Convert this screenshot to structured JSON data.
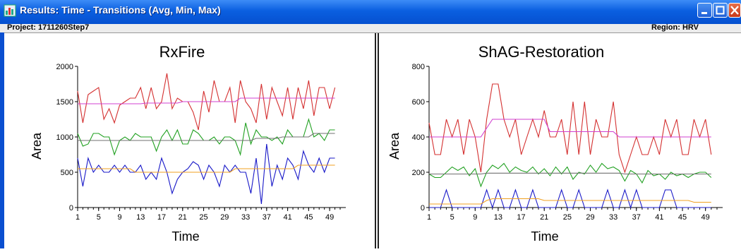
{
  "window": {
    "title": "Results: Time - Transitions (Avg, Min, Max)",
    "project_label": "Project: 1711260Step7",
    "region_label": "Region: HRV"
  },
  "colors": {
    "series_1": "#d43030",
    "series_2": "#d040d0",
    "series_3": "#20a020",
    "series_4": "#707070",
    "series_5": "#1818c8",
    "series_6": "#f0a020"
  },
  "chart_data": [
    {
      "type": "line",
      "title": "RxFire",
      "xlabel": "Time",
      "ylabel": "Area",
      "xlim": [
        1,
        51
      ],
      "ylim": [
        0,
        2000
      ],
      "xticks": [
        1,
        5,
        9,
        13,
        17,
        21,
        25,
        29,
        33,
        37,
        41,
        45,
        49
      ],
      "yticks": [
        0,
        500,
        1000,
        1500,
        2000
      ],
      "x": [
        1,
        2,
        3,
        4,
        5,
        6,
        7,
        8,
        9,
        10,
        11,
        12,
        13,
        14,
        15,
        16,
        17,
        18,
        19,
        20,
        21,
        22,
        23,
        24,
        25,
        26,
        27,
        28,
        29,
        30,
        31,
        32,
        33,
        34,
        35,
        36,
        37,
        38,
        39,
        40,
        41,
        42,
        43,
        44,
        45,
        46,
        47,
        48,
        49,
        50
      ],
      "series": [
        {
          "color": "#d43030",
          "values": [
            1650,
            1200,
            1600,
            1650,
            1700,
            1250,
            1400,
            1200,
            1450,
            1500,
            1550,
            1550,
            1700,
            1400,
            1700,
            1400,
            1500,
            1900,
            1400,
            1550,
            1500,
            1500,
            1350,
            1100,
            1650,
            1350,
            1800,
            1500,
            1500,
            1700,
            1200,
            1800,
            1500,
            1400,
            1200,
            1750,
            1250,
            1700,
            1500,
            1300,
            1700,
            1250,
            1700,
            1400,
            1800,
            1300,
            1700,
            1700,
            1400,
            1700
          ]
        },
        {
          "color": "#d040d0",
          "values": [
            1470,
            1470,
            1470,
            1470,
            1470,
            1470,
            1470,
            1470,
            1470,
            1470,
            1470,
            1470,
            1470,
            1480,
            1480,
            1480,
            1480,
            1480,
            1480,
            1480,
            1500,
            1500,
            1500,
            1500,
            1500,
            1500,
            1500,
            1500,
            1500,
            1500,
            1500,
            1550,
            1550,
            1550,
            1550,
            1550,
            1550,
            1550,
            1550,
            1550,
            1550,
            1550,
            1550,
            1550,
            1550,
            1550,
            1550,
            1550,
            1550,
            1550
          ]
        },
        {
          "color": "#20a020",
          "values": [
            1050,
            870,
            900,
            1050,
            1050,
            1000,
            1000,
            750,
            950,
            1000,
            950,
            1050,
            1000,
            1000,
            1000,
            800,
            1000,
            1100,
            950,
            1100,
            900,
            900,
            1100,
            1050,
            950,
            950,
            1000,
            900,
            1000,
            1000,
            950,
            750,
            1200,
            900,
            1100,
            1000,
            1000,
            950,
            1000,
            900,
            1100,
            1000,
            1000,
            1000,
            1250,
            1000,
            1050,
            950,
            1100,
            1100
          ]
        },
        {
          "color": "#707070",
          "values": [
            950,
            950,
            950,
            950,
            950,
            950,
            950,
            950,
            950,
            950,
            950,
            950,
            950,
            950,
            950,
            950,
            950,
            950,
            950,
            950,
            950,
            950,
            950,
            950,
            950,
            950,
            950,
            950,
            950,
            950,
            950,
            950,
            950,
            950,
            980,
            980,
            980,
            980,
            980,
            1000,
            1000,
            1000,
            1000,
            1000,
            1000,
            1050,
            1050,
            1050,
            1050,
            1050
          ]
        },
        {
          "color": "#1818c8",
          "values": [
            700,
            300,
            700,
            500,
            600,
            500,
            500,
            600,
            500,
            600,
            500,
            500,
            600,
            400,
            500,
            400,
            700,
            500,
            200,
            400,
            500,
            550,
            650,
            600,
            400,
            600,
            500,
            300,
            600,
            500,
            600,
            500,
            500,
            200,
            700,
            50,
            900,
            300,
            600,
            400,
            700,
            600,
            400,
            800,
            600,
            500,
            700,
            500,
            700,
            700
          ]
        },
        {
          "color": "#f0a020",
          "values": [
            550,
            550,
            550,
            550,
            550,
            550,
            550,
            550,
            550,
            550,
            550,
            500,
            500,
            500,
            500,
            500,
            500,
            500,
            500,
            500,
            500,
            500,
            500,
            500,
            500,
            500,
            500,
            500,
            500,
            500,
            550,
            550,
            550,
            550,
            550,
            550,
            550,
            550,
            550,
            550,
            550,
            550,
            600,
            600,
            600,
            600,
            600,
            600,
            600,
            600
          ]
        }
      ]
    },
    {
      "type": "line",
      "title": "ShAG-Restoration",
      "xlabel": "Time",
      "ylabel": "Area",
      "xlim": [
        1,
        51
      ],
      "ylim": [
        0,
        800
      ],
      "xticks": [
        1,
        5,
        9,
        13,
        17,
        21,
        25,
        29,
        33,
        37,
        41,
        45,
        49
      ],
      "yticks": [
        0,
        200,
        400,
        600,
        800
      ],
      "x": [
        1,
        2,
        3,
        4,
        5,
        6,
        7,
        8,
        9,
        10,
        11,
        12,
        13,
        14,
        15,
        16,
        17,
        18,
        19,
        20,
        21,
        22,
        23,
        24,
        25,
        26,
        27,
        28,
        29,
        30,
        31,
        32,
        33,
        34,
        35,
        36,
        37,
        38,
        39,
        40,
        41,
        42,
        43,
        44,
        45,
        46,
        47,
        48,
        49,
        50
      ],
      "series": [
        {
          "color": "#d43030",
          "values": [
            480,
            300,
            300,
            500,
            400,
            500,
            300,
            500,
            400,
            200,
            500,
            700,
            700,
            500,
            400,
            500,
            300,
            400,
            500,
            400,
            550,
            400,
            400,
            500,
            300,
            600,
            300,
            600,
            300,
            500,
            400,
            400,
            600,
            300,
            200,
            300,
            400,
            300,
            300,
            400,
            300,
            500,
            400,
            500,
            300,
            300,
            500,
            400,
            500,
            300
          ]
        },
        {
          "color": "#d040d0",
          "values": [
            400,
            400,
            400,
            400,
            400,
            400,
            400,
            400,
            400,
            400,
            450,
            500,
            500,
            500,
            500,
            500,
            500,
            500,
            500,
            500,
            500,
            430,
            430,
            430,
            430,
            430,
            430,
            430,
            430,
            430,
            430,
            430,
            430,
            400,
            400,
            400,
            400,
            400,
            400,
            400,
            400,
            400,
            400,
            400,
            400,
            400,
            400,
            400,
            400,
            400
          ]
        },
        {
          "color": "#20a020",
          "values": [
            190,
            170,
            170,
            200,
            230,
            210,
            230,
            180,
            220,
            120,
            200,
            240,
            220,
            250,
            200,
            230,
            210,
            200,
            230,
            190,
            220,
            180,
            230,
            190,
            230,
            160,
            200,
            190,
            240,
            200,
            250,
            220,
            230,
            210,
            150,
            210,
            190,
            140,
            210,
            180,
            190,
            160,
            200,
            180,
            190,
            170,
            190,
            200,
            200,
            170
          ]
        },
        {
          "color": "#707070",
          "values": [
            190,
            190,
            190,
            190,
            190,
            190,
            190,
            190,
            190,
            190,
            195,
            195,
            195,
            195,
            195,
            195,
            195,
            195,
            195,
            195,
            195,
            195,
            195,
            195,
            195,
            195,
            195,
            195,
            195,
            195,
            195,
            195,
            195,
            195,
            190,
            190,
            190,
            190,
            190,
            190,
            190,
            190,
            190,
            190,
            190,
            190,
            190,
            190,
            190,
            190
          ]
        },
        {
          "color": "#1818c8",
          "values": [
            0,
            0,
            0,
            100,
            0,
            0,
            0,
            0,
            0,
            0,
            100,
            0,
            100,
            0,
            0,
            100,
            0,
            0,
            100,
            0,
            0,
            0,
            0,
            100,
            0,
            0,
            100,
            0,
            0,
            0,
            0,
            100,
            0,
            0,
            100,
            0,
            100,
            0,
            0,
            0,
            0,
            100,
            100,
            0,
            0,
            0,
            0,
            0,
            0,
            0
          ]
        },
        {
          "color": "#f0a020",
          "values": [
            20,
            20,
            20,
            20,
            20,
            20,
            20,
            20,
            20,
            20,
            40,
            50,
            50,
            50,
            50,
            50,
            50,
            50,
            50,
            50,
            40,
            40,
            40,
            40,
            40,
            40,
            40,
            40,
            40,
            40,
            40,
            40,
            40,
            40,
            40,
            40,
            40,
            40,
            40,
            40,
            40,
            40,
            40,
            40,
            40,
            40,
            30,
            30,
            30,
            30
          ]
        }
      ]
    }
  ]
}
